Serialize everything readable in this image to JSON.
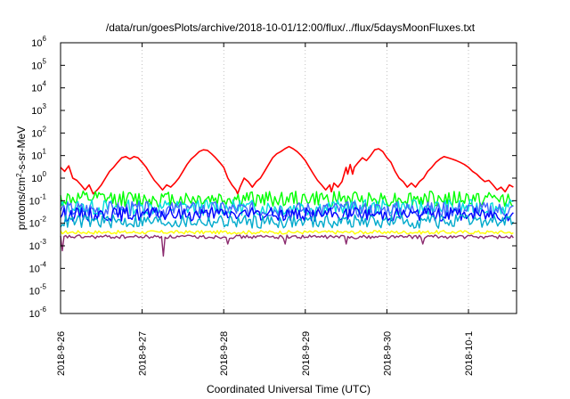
{
  "chart_data": {
    "type": "line",
    "title": "/data/run/goesPlots/archive/2018-10-01/12:00/flux/../flux/5daysMoonFluxes.txt",
    "xlabel": "Coordinated Universal Time (UTC)",
    "ylabel": "protons/cm²-s-sr-MeV",
    "y_scale": "log",
    "ylim_exp": [
      -6,
      6
    ],
    "xlim_days": [
      0,
      5.55
    ],
    "x_ticks": [
      {
        "label": "2018-9-26",
        "day": 0
      },
      {
        "label": "2018-9-27",
        "day": 1
      },
      {
        "label": "2018-9-28",
        "day": 2
      },
      {
        "label": "2018-9-29",
        "day": 3
      },
      {
        "label": "2018-9-30",
        "day": 4
      },
      {
        "label": "2018-10-1",
        "day": 5
      }
    ],
    "y_ticks": [
      {
        "base": "10",
        "exp": "-6",
        "value": -6
      },
      {
        "base": "10",
        "exp": "-5",
        "value": -5
      },
      {
        "base": "10",
        "exp": "-4",
        "value": -4
      },
      {
        "base": "10",
        "exp": "-3",
        "value": -3
      },
      {
        "base": "10",
        "exp": "-2",
        "value": -2
      },
      {
        "base": "10",
        "exp": "-1",
        "value": -1
      },
      {
        "base": "10",
        "exp": "0",
        "value": 0
      },
      {
        "base": "10",
        "exp": "1",
        "value": 1
      },
      {
        "base": "10",
        "exp": "2",
        "value": 2
      },
      {
        "base": "10",
        "exp": "3",
        "value": 3
      },
      {
        "base": "10",
        "exp": "4",
        "value": 4
      },
      {
        "base": "10",
        "exp": "5",
        "value": 5
      },
      {
        "base": "10",
        "exp": "6",
        "value": 6
      }
    ],
    "grid": "vertical dotted",
    "series": [
      {
        "color": "#ff0000",
        "points": [
          [
            0.0,
            3.0
          ],
          [
            0.05,
            2.0
          ],
          [
            0.1,
            3.5
          ],
          [
            0.15,
            1.0
          ],
          [
            0.2,
            0.8
          ],
          [
            0.25,
            0.5
          ],
          [
            0.3,
            0.3
          ],
          [
            0.35,
            0.5
          ],
          [
            0.4,
            0.2
          ],
          [
            0.45,
            0.3
          ],
          [
            0.5,
            0.5
          ],
          [
            0.55,
            1.0
          ],
          [
            0.6,
            2.0
          ],
          [
            0.65,
            3.0
          ],
          [
            0.7,
            5.0
          ],
          [
            0.75,
            8.0
          ],
          [
            0.8,
            9.0
          ],
          [
            0.85,
            7.0
          ],
          [
            0.9,
            9.0
          ],
          [
            0.95,
            8.0
          ],
          [
            1.0,
            5.0
          ],
          [
            1.05,
            3.0
          ],
          [
            1.1,
            1.5
          ],
          [
            1.15,
            0.8
          ],
          [
            1.2,
            0.5
          ],
          [
            1.25,
            0.3
          ],
          [
            1.3,
            0.5
          ],
          [
            1.35,
            0.4
          ],
          [
            1.4,
            0.6
          ],
          [
            1.45,
            1.0
          ],
          [
            1.5,
            2.0
          ],
          [
            1.55,
            4.0
          ],
          [
            1.6,
            7.0
          ],
          [
            1.65,
            10.0
          ],
          [
            1.7,
            15.0
          ],
          [
            1.75,
            18.0
          ],
          [
            1.8,
            17.0
          ],
          [
            1.85,
            12.0
          ],
          [
            1.9,
            8.0
          ],
          [
            1.95,
            5.0
          ],
          [
            2.0,
            3.0
          ],
          [
            2.05,
            1.0
          ],
          [
            2.1,
            0.5
          ],
          [
            2.15,
            0.3
          ],
          [
            2.17,
            0.2
          ],
          [
            2.2,
            0.4
          ],
          [
            2.25,
            1.0
          ],
          [
            2.3,
            0.7
          ],
          [
            2.35,
            0.4
          ],
          [
            2.4,
            0.7
          ],
          [
            2.45,
            1.0
          ],
          [
            2.5,
            2.0
          ],
          [
            2.55,
            4.0
          ],
          [
            2.6,
            8.0
          ],
          [
            2.65,
            12.0
          ],
          [
            2.7,
            15.0
          ],
          [
            2.75,
            20.0
          ],
          [
            2.8,
            25.0
          ],
          [
            2.85,
            20.0
          ],
          [
            2.9,
            15.0
          ],
          [
            2.95,
            10.0
          ],
          [
            3.0,
            6.0
          ],
          [
            3.05,
            3.0
          ],
          [
            3.1,
            1.5
          ],
          [
            3.15,
            0.8
          ],
          [
            3.2,
            0.5
          ],
          [
            3.25,
            0.3
          ],
          [
            3.3,
            0.5
          ],
          [
            3.32,
            0.25
          ],
          [
            3.35,
            0.6
          ],
          [
            3.4,
            0.4
          ],
          [
            3.45,
            0.7
          ],
          [
            3.5,
            3.0
          ],
          [
            3.52,
            1.5
          ],
          [
            3.55,
            4.0
          ],
          [
            3.58,
            1.5
          ],
          [
            3.6,
            3.0
          ],
          [
            3.65,
            5.0
          ],
          [
            3.7,
            8.0
          ],
          [
            3.75,
            6.0
          ],
          [
            3.8,
            10.0
          ],
          [
            3.85,
            18.0
          ],
          [
            3.9,
            20.0
          ],
          [
            3.95,
            15.0
          ],
          [
            4.0,
            8.0
          ],
          [
            4.05,
            5.0
          ],
          [
            4.1,
            2.0
          ],
          [
            4.15,
            1.0
          ],
          [
            4.2,
            0.7
          ],
          [
            4.25,
            0.4
          ],
          [
            4.3,
            0.6
          ],
          [
            4.35,
            0.4
          ],
          [
            4.4,
            0.7
          ],
          [
            4.45,
            1.0
          ],
          [
            4.5,
            2.0
          ],
          [
            4.55,
            3.0
          ],
          [
            4.6,
            5.0
          ],
          [
            4.65,
            7.0
          ],
          [
            4.7,
            9.0
          ],
          [
            4.75,
            8.0
          ],
          [
            4.8,
            7.0
          ],
          [
            4.85,
            6.0
          ],
          [
            4.9,
            5.0
          ],
          [
            4.95,
            4.0
          ],
          [
            5.0,
            3.0
          ],
          [
            5.05,
            2.0
          ],
          [
            5.1,
            1.5
          ],
          [
            5.15,
            1.0
          ],
          [
            5.2,
            0.7
          ],
          [
            5.25,
            0.8
          ],
          [
            5.3,
            0.5
          ],
          [
            5.35,
            0.3
          ],
          [
            5.4,
            0.4
          ],
          [
            5.45,
            0.25
          ],
          [
            5.5,
            0.5
          ],
          [
            5.55,
            0.4
          ]
        ]
      },
      {
        "color": "#00ff00",
        "base": 0.12,
        "amp": 0.35,
        "phase": 1
      },
      {
        "color": "#00dddd",
        "base": 0.05,
        "amp": 0.35,
        "phase": 2
      },
      {
        "color": "#4466ff",
        "base": 0.04,
        "amp": 0.35,
        "phase": 3
      },
      {
        "color": "#0000ff",
        "base": 0.025,
        "amp": 0.3,
        "phase": 4
      },
      {
        "color": "#00aacc",
        "base": 0.012,
        "amp": 0.3,
        "phase": 5
      },
      {
        "color": "#ffff00",
        "base": 0.004,
        "amp": 0.08,
        "phase": 6
      },
      {
        "color": "#8b2a6e",
        "base": 0.0025,
        "amp": 0.08,
        "phase": 7,
        "dips": [
          [
            0.02,
            0.0006
          ],
          [
            1.25,
            0.00035
          ],
          [
            2.05,
            0.0012
          ],
          [
            2.75,
            0.0012
          ],
          [
            3.5,
            0.0012
          ],
          [
            4.45,
            0.0012
          ]
        ]
      }
    ]
  }
}
